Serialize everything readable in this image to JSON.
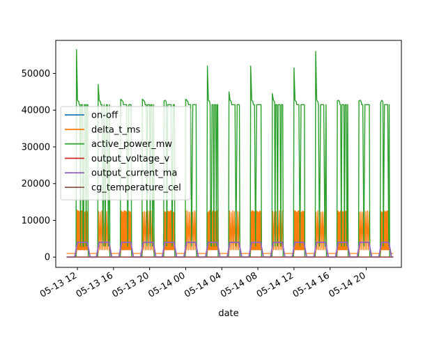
{
  "chart_data": {
    "type": "line",
    "title": "",
    "xlabel": "date",
    "ylabel": "",
    "x_tick_labels": [
      "05-13 12",
      "05-13 16",
      "05-13 20",
      "05-14 00",
      "05-14 04",
      "05-14 08",
      "05-14 12",
      "05-14 16",
      "05-14 20"
    ],
    "x_range_hours": [
      -2.4,
      35.9
    ],
    "ylim": [
      -2800,
      59000
    ],
    "y_ticks": [
      0,
      10000,
      20000,
      30000,
      40000,
      50000
    ],
    "legend_position": "center-left",
    "colors": {
      "on-off": "#1f77b4",
      "delta_t_ms": "#ff7f0e",
      "active_power_mw": "#2ca02c",
      "output_voltage_v": "#d62728",
      "output_current_ma": "#9467bd",
      "cg_temperature_cel": "#8c564b"
    },
    "cycle_on_periods_hours": [
      [
        -0.1,
        1.2
      ],
      [
        2.3,
        3.6
      ],
      [
        4.8,
        6.0
      ],
      [
        7.2,
        8.5
      ],
      [
        9.6,
        10.8
      ],
      [
        12.0,
        13.2
      ],
      [
        14.4,
        15.6
      ],
      [
        16.8,
        18.0
      ],
      [
        19.2,
        20.4
      ],
      [
        21.6,
        22.8
      ],
      [
        24.0,
        25.2
      ],
      [
        26.4,
        27.6
      ],
      [
        28.8,
        30.0
      ],
      [
        31.2,
        32.4
      ],
      [
        33.6,
        34.6
      ]
    ],
    "series": [
      {
        "name": "on-off",
        "values_summary": {
          "off": 0,
          "on": 1
        }
      },
      {
        "name": "delta_t_ms",
        "values_summary": {
          "baseline": 1000,
          "peak": 13000
        }
      },
      {
        "name": "active_power_mw",
        "peaks": [
          56500,
          47000,
          43000,
          43000,
          42500,
          43000,
          52000,
          45000,
          52000,
          44500,
          51500,
          56000,
          42500,
          42500,
          42000
        ],
        "plateau": 41500,
        "off": 0
      },
      {
        "name": "output_voltage_v",
        "values_summary": {
          "off": 0,
          "on": 5
        }
      },
      {
        "name": "output_current_ma",
        "values_summary": {
          "off": 0,
          "on": 4000
        }
      },
      {
        "name": "cg_temperature_cel",
        "values_summary": {
          "level": 40
        }
      }
    ]
  },
  "legend": {
    "entries": [
      "on-off",
      "delta_t_ms",
      "active_power_mw",
      "output_voltage_v",
      "output_current_ma",
      "cg_temperature_cel"
    ]
  }
}
